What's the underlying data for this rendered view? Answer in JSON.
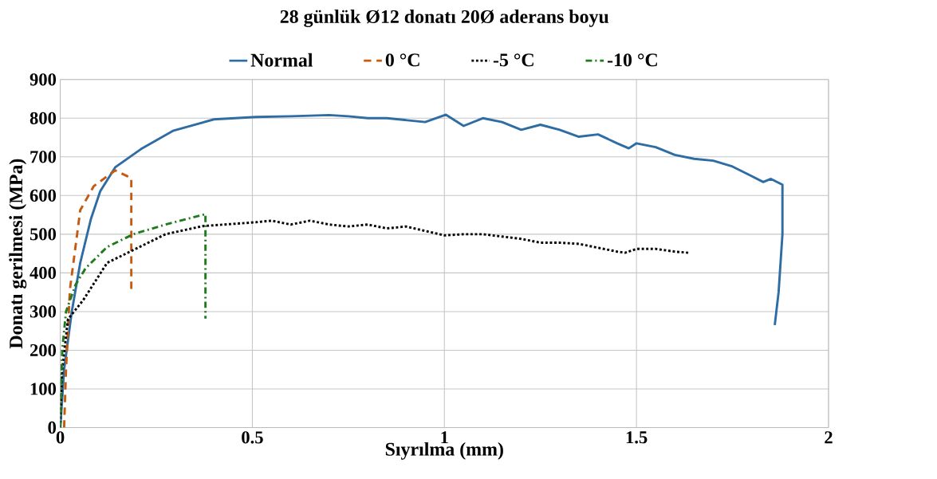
{
  "chart_data": {
    "type": "line",
    "title": "28 günlük  Ø12 donatı 20Ø aderans boyu",
    "xlabel": "Sıyrılma (mm)",
    "ylabel": "Donatı gerilmesi (MPa)",
    "xlim": [
      0,
      2
    ],
    "ylim": [
      0,
      900
    ],
    "xticks": [
      0,
      0.5,
      1,
      1.5,
      2
    ],
    "yticks": [
      0,
      100,
      200,
      300,
      400,
      500,
      600,
      700,
      800,
      900
    ],
    "grid": true,
    "legend": "top",
    "series": [
      {
        "name": "Normal",
        "color": "#2e6ca4",
        "line_style": "solid",
        "x": [
          0,
          0.01,
          0.03,
          0.052,
          0.08,
          0.104,
          0.143,
          0.21,
          0.295,
          0.4,
          0.51,
          0.6,
          0.7,
          0.75,
          0.8,
          0.85,
          0.9,
          0.95,
          1.004,
          1.05,
          1.1,
          1.15,
          1.2,
          1.25,
          1.3,
          1.35,
          1.4,
          1.45,
          1.48,
          1.5,
          1.55,
          1.6,
          1.65,
          1.7,
          1.75,
          1.8,
          1.83,
          1.85,
          1.88,
          1.88,
          1.87,
          1.86
        ],
        "values": [
          0,
          150,
          300,
          426,
          540,
          611,
          673,
          720,
          768,
          797,
          803,
          805,
          808,
          805,
          800,
          800,
          795,
          790,
          809,
          780,
          800,
          790,
          770,
          783,
          770,
          752,
          758,
          735,
          722,
          735,
          725,
          705,
          695,
          690,
          675,
          650,
          635,
          643,
          628,
          500,
          350,
          265
        ]
      },
      {
        "name": "0 °C",
        "color": "#c55a11",
        "line_style": "dashed",
        "x": [
          0.01,
          0.015,
          0.025,
          0.052,
          0.087,
          0.143,
          0.185,
          0.185
        ],
        "values": [
          0,
          150,
          356,
          562,
          624,
          665,
          645,
          350
        ]
      },
      {
        "name": "-5 °C",
        "color": "#000000",
        "line_style": "dotted",
        "x": [
          0,
          0.005,
          0.02,
          0.06,
          0.122,
          0.19,
          0.274,
          0.371,
          0.51,
          0.55,
          0.6,
          0.65,
          0.7,
          0.75,
          0.8,
          0.85,
          0.9,
          1.0,
          1.05,
          1.1,
          1.2,
          1.25,
          1.3,
          1.35,
          1.4,
          1.45,
          1.47,
          1.5,
          1.55,
          1.6,
          1.635
        ],
        "values": [
          0,
          150,
          280,
          330,
          426,
          459,
          500,
          521,
          531,
          535,
          525,
          535,
          525,
          520,
          525,
          515,
          520,
          497,
          500,
          500,
          488,
          478,
          478,
          475,
          465,
          455,
          452,
          462,
          462,
          455,
          452
        ]
      },
      {
        "name": "-10 °C",
        "color": "#1e7b1e",
        "line_style": "dashdot",
        "x": [
          0,
          0.005,
          0.015,
          0.04,
          0.066,
          0.122,
          0.19,
          0.274,
          0.378,
          0.378
        ],
        "values": [
          0,
          200,
          300,
          370,
          412,
          467,
          500,
          525,
          552,
          282
        ]
      }
    ]
  }
}
